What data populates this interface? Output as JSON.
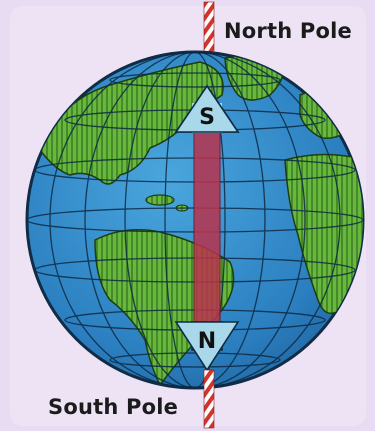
{
  "labels": {
    "north_pole": "North Pole",
    "south_pole": "South Pole"
  },
  "magnet": {
    "top_pole_letter": "S",
    "bottom_pole_letter": "N"
  },
  "colors": {
    "background": "#e7dcf2",
    "ocean": "#2f86c3",
    "land": "#63b33a",
    "grid": "#0d2a44",
    "axis_stripe": "#d0342c",
    "magnet_bar": "#b8334d",
    "arrow": "#a9d8ea"
  },
  "icons": {
    "globe": "earth-globe-icon",
    "axis": "rotation-axis-icon",
    "magnet": "bar-magnet-icon"
  }
}
